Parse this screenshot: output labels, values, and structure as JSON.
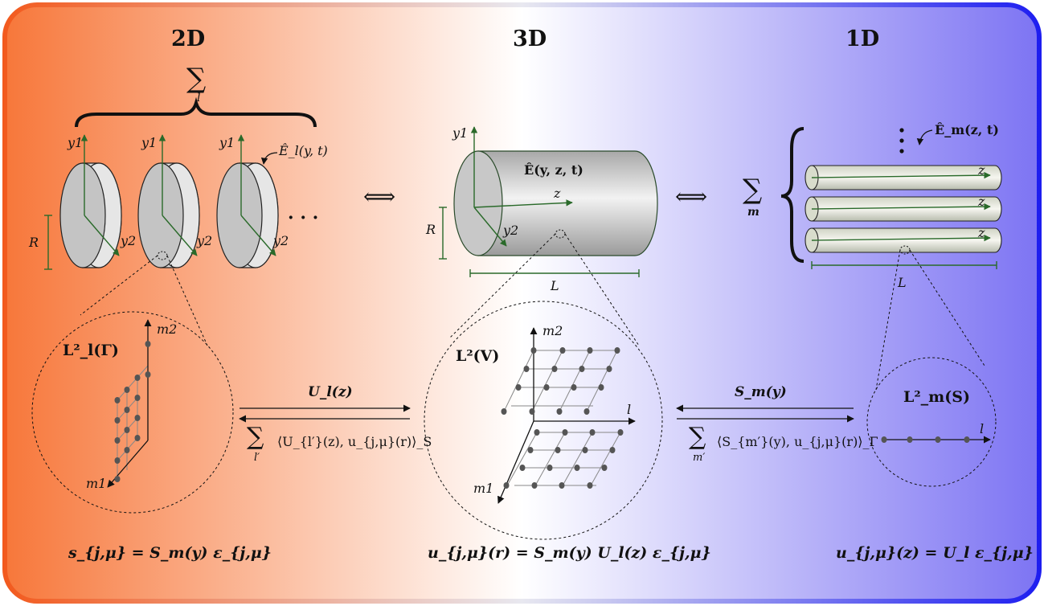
{
  "headings": {
    "left": "2D",
    "center": "3D",
    "right": "1D"
  },
  "left": {
    "sum_symbol": "∑",
    "sum_index": "l",
    "axis_y1": [
      "y1",
      "y1",
      "y1"
    ],
    "axis_y2": [
      "y2",
      "y2",
      "y2"
    ],
    "field_label": "Ê_l(y, t)",
    "ellipsis": "· · ·",
    "radius_label": "R",
    "space_label": "L²_l(Γ)",
    "grid_axis_top": "m2",
    "grid_axis_bottom": "m1",
    "formula": "s_{j,μ} = S_m(y) ε_{j,μ}"
  },
  "center": {
    "axis_y1": "y1",
    "axis_y2": "y2",
    "axis_z": "z",
    "field_label": "Ê(y, z, t)",
    "radius_label": "R",
    "length_label": "L",
    "space_label": "L²(V)",
    "grid_axis_top": "m2",
    "grid_axis_bottom": "m1",
    "grid_axis_right": "l",
    "formula": "u_{j,μ}(r) = S_m(y) U_l(z) ε_{j,μ}"
  },
  "right": {
    "sum_symbol": "∑",
    "sum_index": "m",
    "field_label": "Ê_m(z, t)",
    "axis_z": [
      "z",
      "z",
      "z"
    ],
    "length_label": "L",
    "space_label": "L²_m(S)",
    "axis_l": "l",
    "formula": "u_{j,μ}(z) = U_l ε_{j,μ}"
  },
  "arrows": {
    "equiv_left": "⟺",
    "equiv_right": "⟺",
    "left_top": "U_l(z)",
    "left_bottom_sum": "∑",
    "left_bottom_index": "l′",
    "left_bottom": "⟨U_{l′}(z), u_{j,μ}(r)⟩_S",
    "right_top": "S_m(y)",
    "right_bottom_sum": "∑",
    "right_bottom_index": "m′",
    "right_bottom": "⟨S_{m′}(y), u_{j,μ}(r)⟩_Γ"
  },
  "colors": {
    "left_gradient": "#f77434",
    "right_gradient": "#7a72f2",
    "border_left": "#f25a1e",
    "border_right": "#1e1ef0",
    "axis_green": "#2a6a2a"
  }
}
